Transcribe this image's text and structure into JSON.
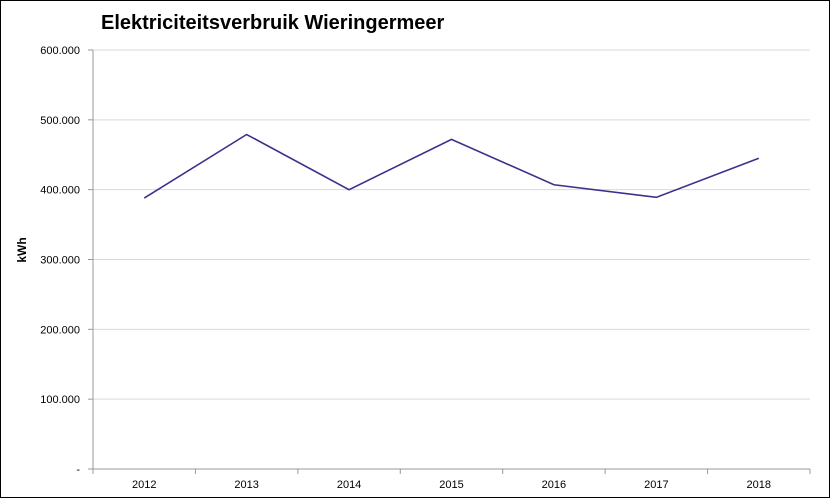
{
  "chart_data": {
    "type": "line",
    "title": "Elektriciteitsverbruik Wieringermeer",
    "ylabel": "kWh",
    "xlabel": "",
    "categories": [
      "2012",
      "2013",
      "2014",
      "2015",
      "2016",
      "2017",
      "2018"
    ],
    "series": [
      {
        "values": [
          388000,
          479000,
          400000,
          472000,
          407000,
          389000,
          445000
        ]
      }
    ],
    "ylim": [
      0,
      600000
    ],
    "yticks": [
      0,
      100000,
      200000,
      300000,
      400000,
      500000,
      600000
    ],
    "ytick_labels": [
      "-",
      "100.000",
      "200.000",
      "300.000",
      "400.000",
      "500.000",
      "600.000"
    ],
    "grid": true,
    "legend": "none",
    "line_color": "#3f2f8c",
    "grid_color": "#d9d9d9"
  }
}
